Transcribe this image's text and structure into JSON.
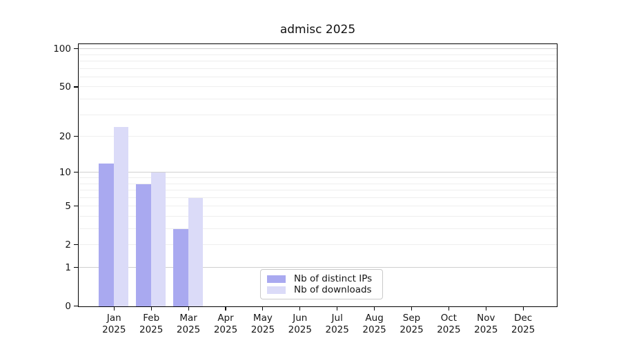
{
  "title": "admisc 2025",
  "chart_data": {
    "type": "bar",
    "title": "admisc 2025",
    "year": "2025",
    "categories": [
      "Jan",
      "Feb",
      "Mar",
      "Apr",
      "May",
      "Jun",
      "Jul",
      "Aug",
      "Sep",
      "Oct",
      "Nov",
      "Dec"
    ],
    "series": [
      {
        "name": "Nb of distinct IPs",
        "color": "#a9a9f0",
        "values": [
          12,
          8,
          3,
          0,
          0,
          0,
          0,
          0,
          0,
          0,
          0,
          0
        ]
      },
      {
        "name": "Nb of downloads",
        "color": "#dbdbf8",
        "values": [
          24,
          10,
          6,
          0,
          0,
          0,
          0,
          0,
          0,
          0,
          0,
          0
        ]
      }
    ],
    "yscale": "log1p",
    "ylim": [
      0,
      110
    ],
    "ytick_values": [
      0,
      1,
      2,
      5,
      10,
      20,
      50,
      100
    ],
    "grid_major_values": [
      1,
      10,
      100
    ],
    "grid_minor_values": [
      2,
      3,
      4,
      5,
      6,
      7,
      8,
      9,
      20,
      30,
      40,
      50,
      60,
      70,
      80,
      90
    ],
    "grid": "horizontal",
    "legend_position": "lower center",
    "colors": {
      "spine": "#000000",
      "grid_major": "#cfcfcf",
      "grid_minor": "#eeeeee",
      "text": "#151515",
      "background": "#ffffff"
    }
  }
}
